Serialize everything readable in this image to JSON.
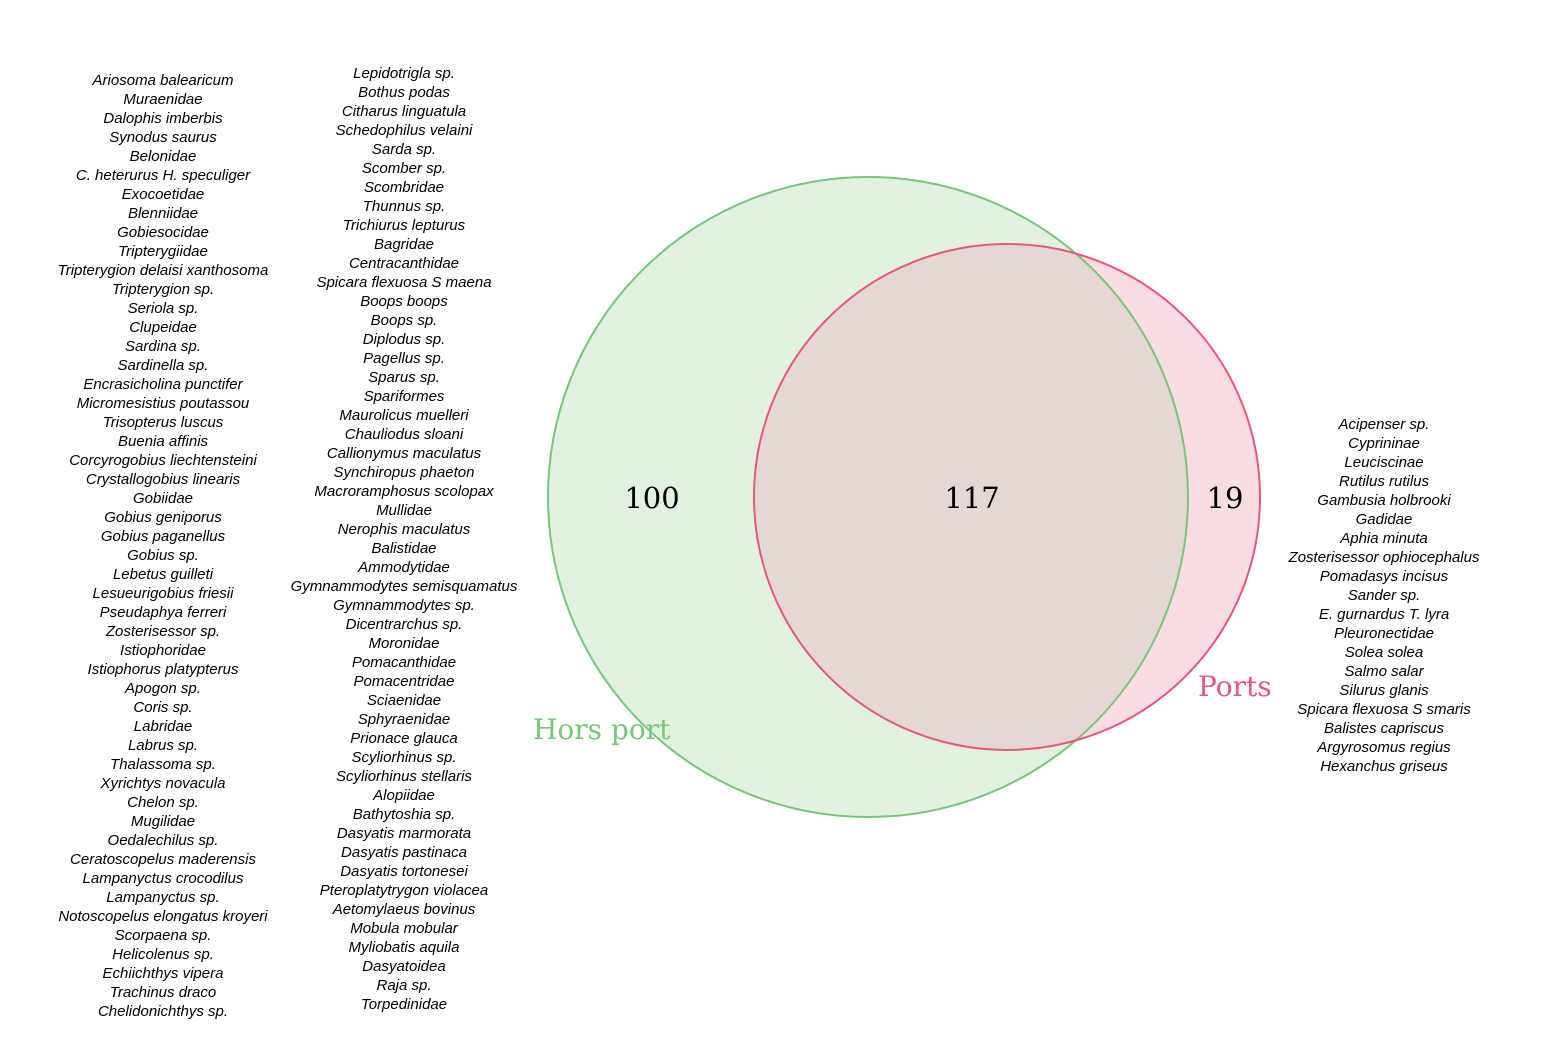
{
  "sets": [
    {
      "name": "Hors port",
      "color": "#78c679",
      "fill": "#e1f2e1"
    },
    {
      "name": "Ports",
      "color": "#e8577a",
      "fill": "#f9dde3"
    }
  ],
  "counts": {
    "hors_port_only": "100",
    "intersection": "117",
    "ports_only": "19"
  },
  "intersection_fill": "#e5d8d2",
  "lists": {
    "left": [
      "Ariosoma balearicum",
      "Muraenidae",
      "Dalophis imberbis",
      "Synodus saurus",
      "Belonidae",
      "C. heterurus H. speculiger",
      "Exocoetidae",
      "Blenniidae",
      "Gobiesocidae",
      "Tripterygiidae",
      "Tripterygion delaisi xanthosoma",
      "Tripterygion sp.",
      "Seriola sp.",
      "Clupeidae",
      "Sardina sp.",
      "Sardinella sp.",
      "Encrasicholina punctifer",
      "Micromesistius poutassou",
      "Trisopterus luscus",
      "Buenia affinis",
      "Corcyrogobius liechtensteini",
      "Crystallogobius linearis",
      "Gobiidae",
      "Gobius geniporus",
      "Gobius paganellus",
      "Gobius sp.",
      "Lebetus guilleti",
      "Lesueurigobius friesii",
      "Pseudaphya ferreri",
      "Zosterisessor sp.",
      "Istiophoridae",
      "Istiophorus platypterus",
      "Apogon sp.",
      "Coris sp.",
      "Labridae",
      "Labrus sp.",
      "Thalassoma sp.",
      "Xyrichtys novacula",
      "Chelon sp.",
      "Mugilidae",
      "Oedalechilus sp.",
      "Ceratoscopelus maderensis",
      "Lampanyctus crocodilus",
      "Lampanyctus sp.",
      "Notoscopelus elongatus kroyeri",
      "Scorpaena sp.",
      "Helicolenus sp.",
      "Echiichthys vipera",
      "Trachinus draco",
      "Chelidonichthys sp."
    ],
    "middle": [
      "Lepidotrigla sp.",
      "Bothus podas",
      "Citharus linguatula",
      "Schedophilus velaini",
      "Sarda sp.",
      "Scomber sp.",
      "Scombridae",
      "Thunnus sp.",
      "Trichiurus lepturus",
      "Bagridae",
      "Centracanthidae",
      "Spicara flexuosa S maena",
      "Boops boops",
      "Boops sp.",
      "Diplodus sp.",
      "Pagellus sp.",
      "Sparus sp.",
      "Spariformes",
      "Maurolicus muelleri",
      "Chauliodus sloani",
      "Callionymus maculatus",
      "Synchiropus phaeton",
      "Macroramphosus scolopax",
      "Mullidae",
      "Nerophis maculatus",
      "Balistidae",
      "Ammodytidae",
      "Gymnammodytes semisquamatus",
      "Gymnammodytes sp.",
      "Dicentrarchus sp.",
      "Moronidae",
      "Pomacanthidae",
      "Pomacentridae",
      "Sciaenidae",
      "Sphyraenidae",
      "Prionace glauca",
      "Scyliorhinus sp.",
      "Scyliorhinus stellaris",
      "Alopiidae",
      "Bathytoshia sp.",
      "Dasyatis marmorata",
      "Dasyatis pastinaca",
      "Dasyatis tortonesei",
      "Pteroplatytrygon violacea",
      "Aetomylaeus bovinus",
      "Mobula mobular",
      "Myliobatis aquila",
      "Dasyatoidea",
      "Raja sp.",
      "Torpedinidae"
    ],
    "right": [
      "Acipenser sp.",
      "Cyprininae",
      "Leuciscinae",
      "Rutilus rutilus",
      "Gambusia holbrooki",
      "Gadidae",
      "Aphia minuta",
      "Zosterisessor ophiocephalus",
      "Pomadasys incisus",
      "Sander sp.",
      "E. gurnardus T. lyra",
      "Pleuronectidae",
      "Solea solea",
      "Salmo salar",
      "Silurus glanis",
      "Spicara flexuosa S smaris",
      "Balistes capriscus",
      "Argyrosomus regius",
      "Hexanchus griseus"
    ]
  }
}
